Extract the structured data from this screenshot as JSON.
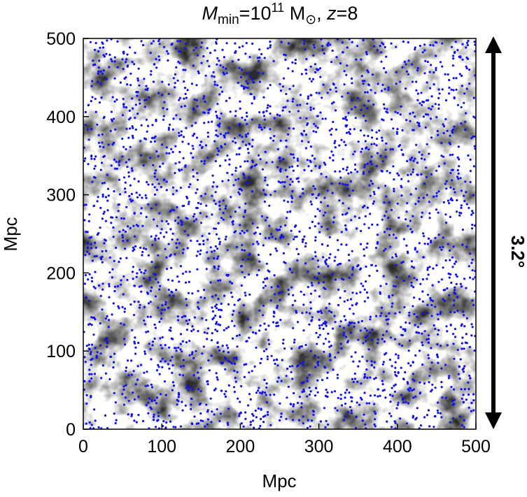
{
  "chart_data": {
    "type": "scatter",
    "title": {
      "m_symbol": "M",
      "m_subscript": "min",
      "equals": "=",
      "mass_base": "10",
      "mass_exponent": "11",
      "mass_unit": "M",
      "unit_subscript": "⊙",
      "separator": ",",
      "z_symbol": "z",
      "z_value": "8"
    },
    "xlabel": "Mpc",
    "ylabel": "Mpc",
    "xlim": [
      0,
      500
    ],
    "ylim": [
      0,
      500
    ],
    "xticks": [
      "0",
      "100",
      "200",
      "300",
      "400",
      "500"
    ],
    "yticks": [
      "0",
      "100",
      "200",
      "300",
      "400",
      "500"
    ],
    "background": "grayscale density field",
    "points": {
      "color": "#1010ee",
      "approx_count": 3000,
      "distribution": "roughly uniform over 0–500 Mpc in x and y, clustered along the dark density structures"
    },
    "angular_extent": {
      "label": "3.2°",
      "span_mpc": [
        0,
        500
      ],
      "indicator": "double-headed vertical arrow along the right side"
    }
  }
}
